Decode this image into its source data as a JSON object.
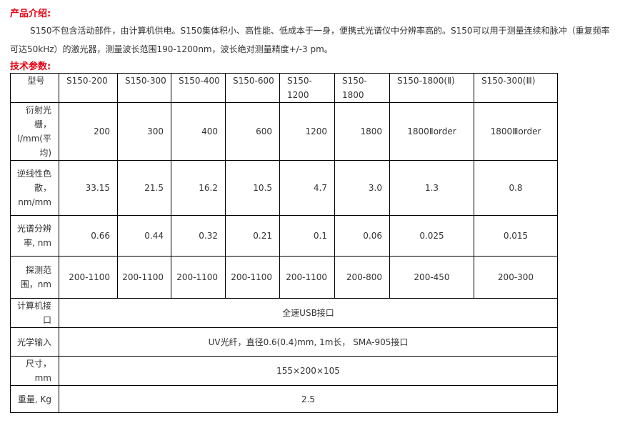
{
  "intro_heading": "产品介绍:",
  "intro_text": "S150不包含活动部件，由计算机供电。S150集体积小、高性能、低成本于一身，便携式光谱仪中分辨率高的。S150可以用于测量连续和脉冲（重复频率可达50kHz）的激光器，测量波长范围190-1200nm，波长绝对测量精度+/-3 pm。",
  "spec_heading": "技术参数:",
  "table": {
    "header": [
      "型号",
      "S150-200",
      "S150-300",
      "S150-400",
      "S150-600",
      "S150-1200",
      "S150-1800",
      "S150-1800(Ⅱ)",
      "S150-300(Ⅲ)"
    ],
    "rows": [
      {
        "label": "衍射光栅，l/mm(平均)",
        "values": [
          "200",
          "300",
          "400",
          "600",
          "1200",
          "1800",
          "1800Ⅱorder",
          "1800Ⅲorder"
        ]
      },
      {
        "label": "逆线性色散，nm/mm",
        "values": [
          "33.15",
          "21.5",
          "16.2",
          "10.5",
          "4.7",
          "3.0",
          "1.3",
          "0.8"
        ]
      },
      {
        "label": "光谱分辨率, nm",
        "values": [
          "0.66",
          "0.44",
          "0.32",
          "0.21",
          "0.1",
          "0.06",
          "0.025",
          "0.015"
        ]
      },
      {
        "label": "探测范围，nm",
        "values": [
          "200-1100",
          "200-1100",
          "200-1100",
          "200-1100",
          "200-1100",
          "200-800",
          "200-450",
          "200-300"
        ]
      },
      {
        "label": "计算机接口",
        "span": "全速USB接口"
      },
      {
        "label": "光学输入",
        "span": "UV光纤，直径0.6(0.4)mm, 1m长， SMA-905接口"
      },
      {
        "label": "尺寸，mm",
        "span": "155×200×105"
      },
      {
        "label": "重量, Kg",
        "span": "2.5"
      }
    ]
  }
}
